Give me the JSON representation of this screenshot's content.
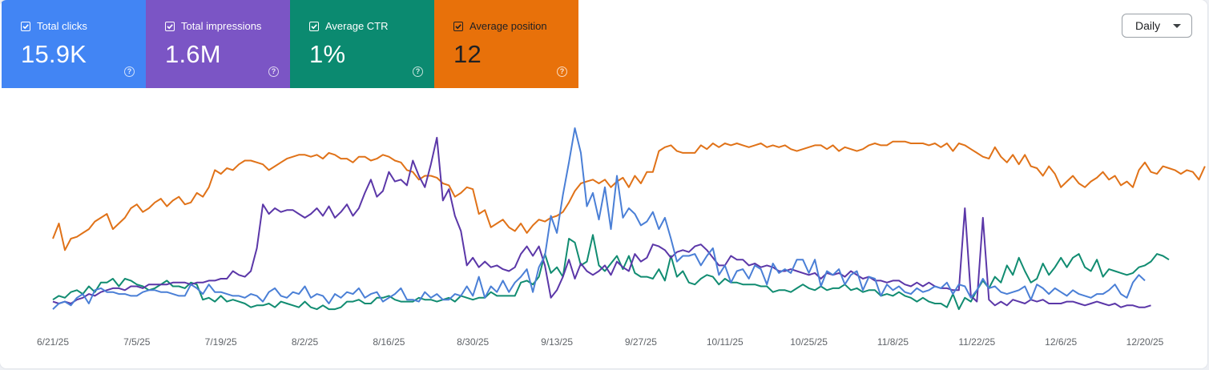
{
  "metrics": [
    {
      "label": "Total clicks",
      "value": "15.9K",
      "color": "#4285f4",
      "checked": true
    },
    {
      "label": "Total impressions",
      "value": "1.6M",
      "color": "#7b55c5",
      "checked": true
    },
    {
      "label": "Average CTR",
      "value": "1%",
      "color": "#0b8a70",
      "checked": true
    },
    {
      "label": "Average position",
      "value": "12",
      "color": "#e8710a",
      "checked": true
    }
  ],
  "help_icon": "help-circle-icon",
  "granularity": {
    "selected": "Daily"
  },
  "chart_data": {
    "type": "line",
    "x_start": "2025-06-21",
    "x_end": "2025-12-20",
    "ticks": [
      "6/21/25",
      "7/5/25",
      "7/19/25",
      "8/2/25",
      "8/16/25",
      "8/30/25",
      "9/13/25",
      "9/27/25",
      "10/11/25",
      "10/25/25",
      "11/8/25",
      "11/22/25",
      "12/6/25",
      "12/20/25"
    ],
    "grid": false,
    "note_scale": "relative 0-100 per series",
    "series": [
      {
        "name": "Total clicks",
        "color": "#4a7fd6",
        "values": [
          5,
          8,
          9,
          7,
          11,
          13,
          8,
          15,
          16,
          14,
          14,
          13,
          13,
          12,
          12,
          14,
          15,
          15,
          14,
          14,
          13,
          12,
          12,
          18,
          16,
          13,
          18,
          14,
          14,
          13,
          12,
          12,
          11,
          13,
          12,
          9,
          14,
          16,
          12,
          11,
          14,
          13,
          17,
          11,
          13,
          12,
          8,
          13,
          11,
          14,
          13,
          16,
          11,
          13,
          14,
          9,
          11,
          13,
          16,
          10,
          10,
          9,
          14,
          11,
          13,
          10,
          10,
          13,
          12,
          17,
          12,
          22,
          11,
          17,
          14,
          20,
          14,
          19,
          22,
          26,
          14,
          27,
          33,
          54,
          45,
          65,
          82,
          100,
          87,
          59,
          66,
          52,
          69,
          47,
          75,
          53,
          58,
          55,
          49,
          51,
          56,
          47,
          53,
          42,
          30,
          33,
          33,
          34,
          28,
          33,
          37,
          23,
          28,
          19,
          25,
          26,
          21,
          28,
          26,
          18,
          29,
          24,
          26,
          24,
          31,
          31,
          24,
          31,
          17,
          25,
          23,
          26,
          18,
          23,
          25,
          15,
          22,
          21,
          12,
          18,
          15,
          17,
          14,
          13,
          16,
          14,
          15,
          17,
          16,
          19,
          13,
          18,
          17,
          11,
          15,
          21,
          16,
          17,
          14,
          13,
          14,
          15,
          17,
          10,
          18,
          16,
          13,
          16,
          14,
          12,
          15,
          13,
          12,
          11,
          13,
          13,
          15,
          18,
          13,
          11,
          19,
          23,
          20
        ]
      },
      {
        "name": "Total impressions",
        "color": "#5b37a8",
        "values": [
          9,
          8,
          9,
          8,
          10,
          11,
          13,
          12,
          14,
          15,
          16,
          16,
          15,
          17,
          17,
          16,
          18,
          18,
          18,
          18,
          19,
          19,
          19,
          18,
          19,
          19,
          20,
          20,
          21,
          21,
          25,
          23,
          22,
          25,
          37,
          60,
          55,
          58,
          56,
          57,
          57,
          55,
          53,
          55,
          58,
          54,
          59,
          53,
          56,
          60,
          54,
          58,
          66,
          73,
          64,
          67,
          77,
          72,
          73,
          70,
          83,
          75,
          69,
          81,
          95,
          62,
          68,
          54,
          46,
          28,
          32,
          27,
          30,
          27,
          28,
          26,
          25,
          27,
          34,
          38,
          33,
          38,
          28,
          11,
          15,
          22,
          31,
          21,
          29,
          25,
          23,
          25,
          28,
          23,
          30,
          27,
          25,
          34,
          30,
          32,
          39,
          38,
          36,
          32,
          35,
          36,
          35,
          38,
          39,
          36,
          32,
          28,
          28,
          33,
          31,
          31,
          28,
          29,
          27,
          28,
          27,
          25,
          25,
          26,
          25,
          24,
          23,
          24,
          21,
          24,
          23,
          24,
          22,
          25,
          23,
          21,
          22,
          20,
          20,
          19,
          20,
          20,
          18,
          17,
          19,
          17,
          19,
          17,
          16,
          16,
          15,
          15,
          58,
          12,
          9,
          53,
          10,
          7,
          9,
          7,
          10,
          9,
          8,
          10,
          9,
          10,
          8,
          8,
          8,
          9,
          9,
          8,
          7,
          8,
          9,
          8,
          7,
          8,
          6,
          7,
          7,
          6,
          6,
          7
        ]
      },
      {
        "name": "Average CTR",
        "color": "#118c71",
        "values": [
          10,
          12,
          11,
          14,
          15,
          13,
          17,
          14,
          19,
          19,
          21,
          17,
          21,
          20,
          18,
          17,
          15,
          16,
          18,
          20,
          17,
          17,
          16,
          19,
          18,
          10,
          11,
          9,
          12,
          9,
          10,
          9,
          8,
          6,
          7,
          7,
          8,
          6,
          9,
          8,
          7,
          6,
          9,
          6,
          5,
          7,
          5,
          5,
          6,
          9,
          9,
          10,
          8,
          8,
          11,
          11,
          12,
          10,
          9,
          9,
          9,
          11,
          10,
          10,
          9,
          10,
          11,
          9,
          12,
          11,
          10,
          11,
          11,
          14,
          12,
          12,
          12,
          12,
          19,
          20,
          18,
          22,
          34,
          24,
          27,
          22,
          42,
          40,
          28,
          30,
          44,
          28,
          25,
          29,
          33,
          26,
          33,
          24,
          22,
          22,
          21,
          26,
          20,
          33,
          22,
          25,
          19,
          18,
          21,
          23,
          22,
          18,
          21,
          19,
          19,
          18,
          18,
          18,
          17,
          17,
          14,
          15,
          15,
          14,
          16,
          18,
          16,
          15,
          17,
          15,
          16,
          16,
          18,
          15,
          16,
          14,
          15,
          15,
          12,
          13,
          12,
          14,
          12,
          11,
          9,
          11,
          9,
          8,
          8,
          6,
          13,
          5,
          11,
          9,
          15,
          20,
          16,
          22,
          19,
          28,
          23,
          32,
          25,
          19,
          21,
          29,
          23,
          27,
          32,
          27,
          32,
          34,
          27,
          25,
          31,
          22,
          26,
          25,
          24,
          23,
          24,
          27,
          28,
          30,
          34,
          33,
          31
        ]
      },
      {
        "name": "Average position",
        "color": "#e07218",
        "values": [
          42,
          50,
          36,
          42,
          43,
          45,
          47,
          51,
          53,
          55,
          47,
          50,
          53,
          58,
          60,
          56,
          58,
          61,
          63,
          59,
          62,
          64,
          60,
          61,
          66,
          64,
          69,
          78,
          76,
          79,
          78,
          81,
          83,
          83,
          82,
          81,
          78,
          80,
          82,
          84,
          85,
          86,
          86,
          85,
          86,
          84,
          87,
          86,
          84,
          84,
          82,
          85,
          85,
          83,
          84,
          86,
          85,
          83,
          82,
          78,
          77,
          73,
          75,
          75,
          74,
          71,
          70,
          64,
          66,
          69,
          68,
          55,
          57,
          48,
          50,
          52,
          48,
          46,
          50,
          45,
          49,
          52,
          51,
          53,
          54,
          56,
          61,
          67,
          71,
          72,
          73,
          71,
          73,
          69,
          72,
          74,
          69,
          75,
          71,
          77,
          77,
          88,
          90,
          91,
          88,
          87,
          87,
          87,
          91,
          89,
          92,
          90,
          92,
          91,
          92,
          91,
          90,
          91,
          92,
          90,
          91,
          90,
          91,
          89,
          88,
          89,
          90,
          91,
          91,
          89,
          91,
          88,
          90,
          89,
          88,
          89,
          91,
          92,
          91,
          91,
          93,
          93,
          93,
          92,
          92,
          92,
          91,
          92,
          90,
          92,
          88,
          92,
          91,
          89,
          87,
          85,
          84,
          90,
          85,
          82,
          86,
          81,
          86,
          80,
          79,
          75,
          80,
          76,
          69,
          72,
          75,
          71,
          69,
          72,
          74,
          77,
          73,
          75,
          70,
          72,
          69,
          78,
          82,
          77,
          76,
          80,
          79,
          78,
          76,
          78,
          77,
          73,
          80
        ]
      }
    ]
  }
}
